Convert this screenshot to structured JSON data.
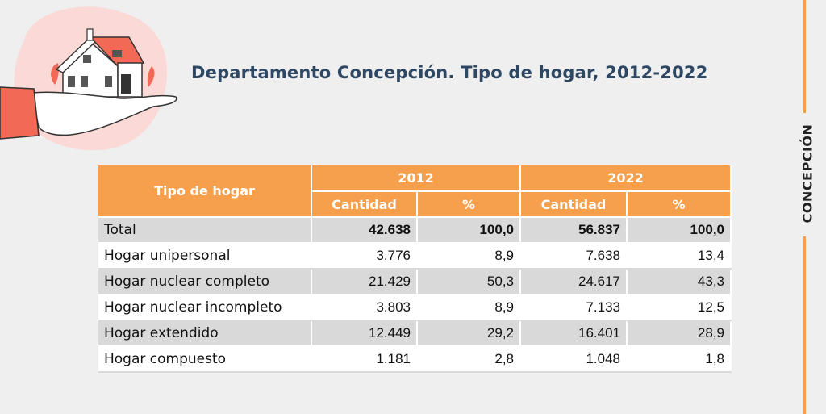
{
  "title": "Departamento Concepción. Tipo de hogar, 2012-2022",
  "side_label": "CONCEPCIÓN",
  "table": {
    "header_type": "Tipo de hogar",
    "years": [
      "2012",
      "2022"
    ],
    "sub_headers": [
      "Cantidad",
      "%",
      "Cantidad",
      "%"
    ],
    "rows": [
      {
        "label": "Total",
        "c2012": "42.638",
        "p2012": "100,0",
        "c2022": "56.837",
        "p2022": "100,0"
      },
      {
        "label": "Hogar unipersonal",
        "c2012": "3.776",
        "p2012": "8,9",
        "c2022": "7.638",
        "p2022": "13,4"
      },
      {
        "label": "Hogar nuclear completo",
        "c2012": "21.429",
        "p2012": "50,3",
        "c2022": "24.617",
        "p2022": "43,3"
      },
      {
        "label": "Hogar nuclear incompleto",
        "c2012": "3.803",
        "p2012": "8,9",
        "c2022": "7.133",
        "p2022": "12,5"
      },
      {
        "label": "Hogar extendido",
        "c2012": "12.449",
        "p2012": "29,2",
        "c2022": "16.401",
        "p2022": "28,9"
      },
      {
        "label": "Hogar compuesto",
        "c2012": "1.181",
        "p2012": "2,8",
        "c2022": "1.048",
        "p2022": "1,8"
      }
    ]
  },
  "colors": {
    "accent": "#f6a04d",
    "title": "#2e4763",
    "row_shade": "#d9d9d9",
    "illustration_bg": "#fbd9d6",
    "roof": "#f26a55"
  },
  "icons": [
    "house-in-hand-illustration"
  ]
}
